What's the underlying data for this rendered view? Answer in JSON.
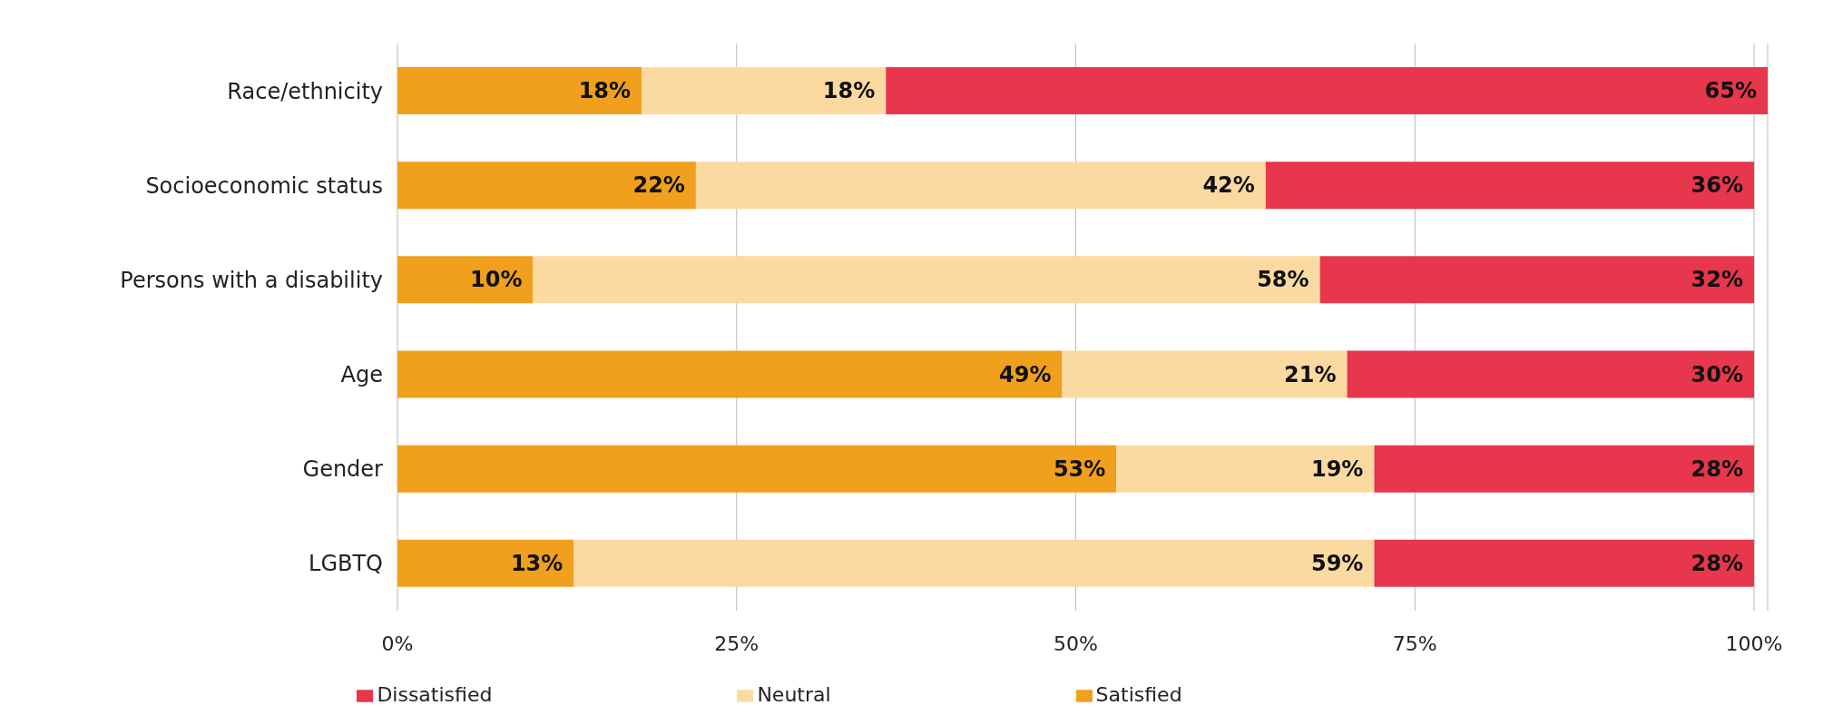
{
  "chart_data": {
    "type": "bar",
    "orientation": "horizontal",
    "stacked": true,
    "categories": [
      "Race/ethnicity",
      "Socioeconomic status",
      "Persons with a disability",
      "Age",
      "Gender",
      "LGBTQ"
    ],
    "series": [
      {
        "name": "Satisfied",
        "color": "#f0a01c",
        "values": [
          18,
          22,
          10,
          49,
          53,
          13
        ],
        "value_labels": [
          "18%",
          "22%",
          "10%",
          "49%",
          "53%",
          "13%"
        ]
      },
      {
        "name": "Neutral",
        "color": "#fbdaa2",
        "values": [
          18,
          42,
          58,
          21,
          19,
          59
        ],
        "value_labels": [
          "18%",
          "42%",
          "58%",
          "21%",
          "19%",
          "59%"
        ]
      },
      {
        "name": "Dissatisfied",
        "color": "#e8364c",
        "values": [
          65,
          36,
          32,
          30,
          28,
          28
        ],
        "value_labels": [
          "65%",
          "36%",
          "32%",
          "30%",
          "28%",
          "28%"
        ]
      }
    ],
    "xlim": [
      0,
      101
    ],
    "xticks": [
      {
        "value": 0,
        "label": "0%"
      },
      {
        "value": 25,
        "label": "25%"
      },
      {
        "value": 50,
        "label": "50%"
      },
      {
        "value": 75,
        "label": "75%"
      },
      {
        "value": 100,
        "label": "100%"
      }
    ],
    "grid": "x",
    "legend": "bottom"
  }
}
